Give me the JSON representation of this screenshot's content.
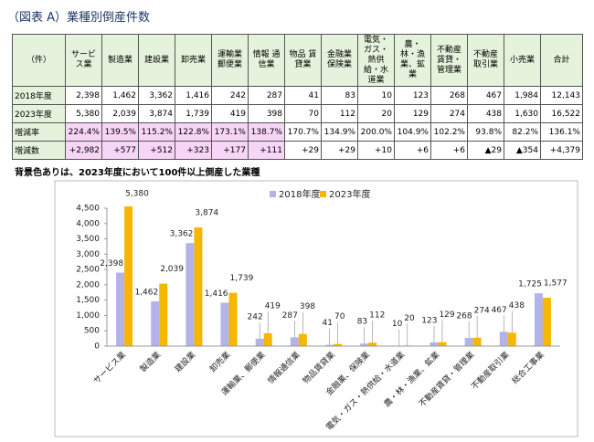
{
  "title": "（図表 A）業種別倒産件数",
  "table": {
    "header": [
      "（件）",
      "サービス業",
      "製造業",
      "建設業",
      "卸売業",
      "運輸業 郵便業",
      "情報 通信業",
      "物品 賃貸業",
      "金融業 保険業",
      "電気・ガス・熱供給・水道業",
      "農・林・漁業、鉱業",
      "不動産賃貸・管理業",
      "不動産取引業",
      "小売業",
      "合計"
    ],
    "rows": [
      [
        "2018年度",
        "2,398",
        "1,462",
        "3,362",
        "1,416",
        "242",
        "287",
        "41",
        "83",
        "10",
        "123",
        "268",
        "467",
        "1,984",
        "12,143"
      ],
      [
        "2023年度",
        "5,380",
        "2,039",
        "3,874",
        "1,739",
        "419",
        "398",
        "70",
        "112",
        "20",
        "129",
        "274",
        "438",
        "1,630",
        "16,522"
      ],
      [
        "増減率",
        "224.4%",
        "139.5%",
        "115.2%",
        "122.8%",
        "173.1%",
        "138.7%",
        "170.7%",
        "134.9%",
        "200.0%",
        "104.9%",
        "102.2%",
        "93.8%",
        "82.2%",
        "136.1%"
      ],
      [
        "増減数",
        "+2,982",
        "+577",
        "+512",
        "+323",
        "+177",
        "+111",
        "+29",
        "+29",
        "+10",
        "+6",
        "+6",
        "▲29",
        "▲354",
        "+4,379"
      ]
    ],
    "highlighted_rows": [
      2,
      3
    ],
    "highlighted_columns": [
      1,
      2,
      3,
      4,
      5,
      6
    ],
    "highlight_color": "#f6d5f6",
    "header_color": "#e6f3dc"
  },
  "note": "背景色ありは、2023年度において100件以上倒産した業種",
  "chart_data": {
    "type": "bar",
    "categories": [
      "サービス業",
      "製造業",
      "建設業",
      "卸売業",
      "運輸業、郵便業",
      "情報通信業",
      "物品賃貸業",
      "金融業、保険業",
      "電気・ガス・熱供給・水道業",
      "農・林・漁業、鉱業",
      "不動産賃貸・管理業",
      "不動産取引業",
      "総合工事業"
    ],
    "series": [
      {
        "name": "2018年度",
        "color": "#b3b3ea",
        "values": [
          2398,
          1462,
          3362,
          1416,
          242,
          287,
          41,
          83,
          10,
          123,
          268,
          467,
          1725
        ],
        "value_labels": [
          "2,398",
          "1,462",
          "3,362",
          "1,416",
          "242",
          "287",
          "41",
          "83",
          "10",
          "123",
          "268",
          "467",
          "1,725"
        ]
      },
      {
        "name": "2023年度",
        "color": "#f5b700",
        "values": [
          5380,
          2039,
          3874,
          1739,
          419,
          398,
          70,
          112,
          20,
          129,
          274,
          438,
          1577
        ],
        "value_labels": [
          "5,380",
          "2,039",
          "3,874",
          "1,739",
          "419",
          "398",
          "70",
          "112",
          "20",
          "129",
          "274",
          "438",
          "1,577"
        ]
      }
    ],
    "ylim": [
      0,
      4500
    ],
    "yticks": [
      0,
      500,
      {
        "value": 1000,
        "label": "1,000"
      },
      {
        "value": 1500,
        "label": "1,500"
      },
      {
        "value": 2000,
        "label": "2,000"
      },
      {
        "value": 2500,
        "label": "2,500"
      },
      {
        "value": 3000,
        "label": "3,000"
      },
      {
        "value": 3500,
        "label": "3,500"
      },
      {
        "value": 4000,
        "label": "4,000"
      },
      {
        "value": 4500,
        "label": "4,500"
      }
    ],
    "grid": false,
    "legend": "top"
  }
}
